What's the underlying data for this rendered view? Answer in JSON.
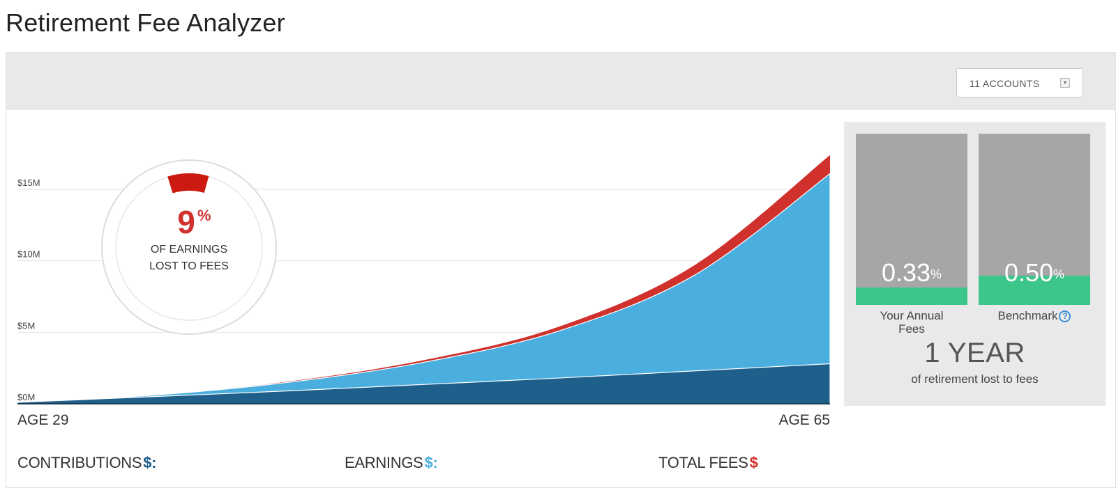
{
  "page": {
    "title": "Retirement Fee Analyzer"
  },
  "toolbar": {
    "accounts_label": "11 ACCOUNTS",
    "caret": "▾"
  },
  "donut": {
    "percent": "9",
    "percent_sign": "%",
    "line1": "OF EARNINGS",
    "line2": "LOST TO FEES",
    "fraction_lost": 0.09
  },
  "chart_data": {
    "type": "area",
    "x_start_label": "AGE 29",
    "x_end_label": "AGE 65",
    "x_range": [
      29,
      65
    ],
    "y_ticks": [
      "$0M",
      "$5M",
      "$10M",
      "$15M"
    ],
    "ylim": [
      0,
      15
    ],
    "grid": true,
    "series": [
      {
        "name": "CONTRIBUTIONS",
        "color": "#1f5f8b",
        "x": [
          29,
          35,
          41,
          47,
          53,
          59,
          65
        ],
        "values": [
          0.1,
          0.5,
          0.9,
          1.35,
          1.8,
          2.3,
          2.8
        ]
      },
      {
        "name": "EARNINGS",
        "color": "#4aafdf",
        "x": [
          29,
          35,
          41,
          47,
          53,
          59,
          65
        ],
        "values": [
          0.1,
          0.6,
          1.5,
          2.9,
          5.1,
          9.0,
          16.1
        ]
      },
      {
        "name": "TOTAL FEES",
        "color": "#d0312d",
        "x": [
          29,
          35,
          41,
          47,
          53,
          59,
          65
        ],
        "values": [
          0.1,
          0.6,
          1.55,
          3.05,
          5.4,
          9.7,
          17.4
        ]
      }
    ]
  },
  "stats": {
    "your_fee": {
      "value": "0.33",
      "sign": "%",
      "label_line1": "Your Annual",
      "label_line2": "Fees",
      "fill_fraction": 0.1
    },
    "benchmark": {
      "value": "0.50",
      "sign": "%",
      "label": "Benchmark",
      "help": "?",
      "fill_fraction": 0.17
    },
    "years_lost": "1 YEAR",
    "years_lost_caption": "of retirement lost to fees"
  },
  "legend": {
    "contributions": {
      "label": "CONTRIBUTIONS",
      "sign": "$:",
      "color": "#1f5f8b"
    },
    "earnings": {
      "label": "EARNINGS",
      "sign": "$:",
      "color": "#4aafdf"
    },
    "total_fees": {
      "label": "TOTAL FEES",
      "sign": "$",
      "color": "#d0312d"
    }
  }
}
